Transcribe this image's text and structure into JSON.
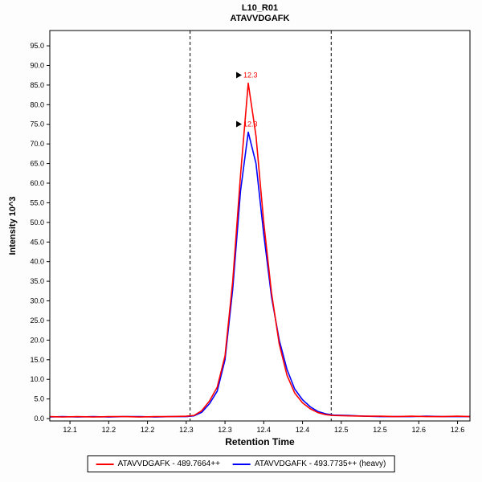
{
  "title": {
    "line1": "L10_R01",
    "line2": "ATAVVDGAFK"
  },
  "axes": {
    "y_label": "Intensity 10^3",
    "x_label": "Retention Time"
  },
  "legend": [
    {
      "label": "ATAVVDGAFK - 489.7664++",
      "color": "#ff0000"
    },
    {
      "label": "ATAVVDGAFK - 493.7735++ (heavy)",
      "color": "#0000ff"
    }
  ],
  "chart_data": {
    "type": "line",
    "title": "L10_R01",
    "subtitle": "ATAVVDGAFK",
    "xlabel": "Retention Time",
    "ylabel": "Intensity 10^3",
    "xlim": [
      12.074,
      12.616
    ],
    "ylim": [
      -0.6,
      98.9
    ],
    "grid": false,
    "legend_position": "bottom",
    "x_ticks": [
      {
        "v": 12.1,
        "label": "12.1"
      },
      {
        "v": 12.15,
        "label": "12.2"
      },
      {
        "v": 12.2,
        "label": "12.2"
      },
      {
        "v": 12.25,
        "label": "12.3"
      },
      {
        "v": 12.3,
        "label": "12.3"
      },
      {
        "v": 12.35,
        "label": "12.4"
      },
      {
        "v": 12.4,
        "label": "12.4"
      },
      {
        "v": 12.45,
        "label": "12.5"
      },
      {
        "v": 12.5,
        "label": "12.5"
      },
      {
        "v": 12.55,
        "label": "12.6"
      },
      {
        "v": 12.6,
        "label": "12.6"
      }
    ],
    "y_ticks": [
      {
        "v": 0,
        "label": "0.0"
      },
      {
        "v": 5,
        "label": "5.0"
      },
      {
        "v": 10,
        "label": "10.0"
      },
      {
        "v": 15,
        "label": "15.0"
      },
      {
        "v": 20,
        "label": "20.0"
      },
      {
        "v": 25,
        "label": "25.0"
      },
      {
        "v": 30,
        "label": "30.0"
      },
      {
        "v": 35,
        "label": "35.0"
      },
      {
        "v": 40,
        "label": "40.0"
      },
      {
        "v": 45,
        "label": "45.0"
      },
      {
        "v": 50,
        "label": "50.0"
      },
      {
        "v": 55,
        "label": "55.0"
      },
      {
        "v": 60,
        "label": "60.0"
      },
      {
        "v": 65,
        "label": "65.0"
      },
      {
        "v": 70,
        "label": "70.0"
      },
      {
        "v": 75,
        "label": "75.0"
      },
      {
        "v": 80,
        "label": "80.0"
      },
      {
        "v": 85,
        "label": "85.0"
      },
      {
        "v": 90,
        "label": "90.0"
      },
      {
        "v": 95,
        "label": "95.0"
      }
    ],
    "peak_boundaries": [
      12.255,
      12.437
    ],
    "annotations": [
      {
        "text": "12.3",
        "x": 12.33,
        "y": 85.5,
        "color": "#ff0000"
      },
      {
        "text": "12.3",
        "x": 12.33,
        "y": 73.0,
        "color": "#ff0000"
      }
    ],
    "series": [
      {
        "name": "ATAVVDGAFK - 489.7664++",
        "color": "#ff0000",
        "points": [
          [
            12.074,
            0.5
          ],
          [
            12.09,
            0.4
          ],
          [
            12.11,
            0.5
          ],
          [
            12.13,
            0.4
          ],
          [
            12.15,
            0.5
          ],
          [
            12.17,
            0.5
          ],
          [
            12.19,
            0.4
          ],
          [
            12.21,
            0.5
          ],
          [
            12.23,
            0.5
          ],
          [
            12.25,
            0.6
          ],
          [
            12.26,
            0.8
          ],
          [
            12.27,
            2.0
          ],
          [
            12.28,
            4.5
          ],
          [
            12.29,
            8.0
          ],
          [
            12.3,
            16.0
          ],
          [
            12.31,
            35.0
          ],
          [
            12.32,
            62.0
          ],
          [
            12.33,
            85.5
          ],
          [
            12.34,
            72.0
          ],
          [
            12.35,
            50.0
          ],
          [
            12.36,
            32.0
          ],
          [
            12.37,
            19.0
          ],
          [
            12.38,
            11.0
          ],
          [
            12.39,
            6.5
          ],
          [
            12.4,
            4.0
          ],
          [
            12.41,
            2.5
          ],
          [
            12.42,
            1.5
          ],
          [
            12.43,
            1.0
          ],
          [
            12.44,
            0.8
          ],
          [
            12.46,
            0.7
          ],
          [
            12.48,
            0.6
          ],
          [
            12.5,
            0.6
          ],
          [
            12.52,
            0.5
          ],
          [
            12.54,
            0.6
          ],
          [
            12.56,
            0.5
          ],
          [
            12.58,
            0.5
          ],
          [
            12.6,
            0.6
          ],
          [
            12.616,
            0.5
          ]
        ]
      },
      {
        "name": "ATAVVDGAFK - 493.7735++ (heavy)",
        "color": "#0000ff",
        "points": [
          [
            12.074,
            0.4
          ],
          [
            12.09,
            0.5
          ],
          [
            12.11,
            0.4
          ],
          [
            12.13,
            0.5
          ],
          [
            12.15,
            0.4
          ],
          [
            12.17,
            0.5
          ],
          [
            12.19,
            0.5
          ],
          [
            12.21,
            0.4
          ],
          [
            12.23,
            0.5
          ],
          [
            12.25,
            0.5
          ],
          [
            12.26,
            0.7
          ],
          [
            12.27,
            1.6
          ],
          [
            12.28,
            3.8
          ],
          [
            12.29,
            7.0
          ],
          [
            12.3,
            15.0
          ],
          [
            12.31,
            33.0
          ],
          [
            12.32,
            58.0
          ],
          [
            12.33,
            73.0
          ],
          [
            12.34,
            65.0
          ],
          [
            12.35,
            47.0
          ],
          [
            12.36,
            31.0
          ],
          [
            12.37,
            20.0
          ],
          [
            12.38,
            12.5
          ],
          [
            12.39,
            7.5
          ],
          [
            12.4,
            4.8
          ],
          [
            12.41,
            3.0
          ],
          [
            12.42,
            1.8
          ],
          [
            12.43,
            1.2
          ],
          [
            12.44,
            0.9
          ],
          [
            12.46,
            0.8
          ],
          [
            12.48,
            0.6
          ],
          [
            12.5,
            0.5
          ],
          [
            12.52,
            0.5
          ],
          [
            12.54,
            0.5
          ],
          [
            12.56,
            0.6
          ],
          [
            12.58,
            0.5
          ],
          [
            12.6,
            0.5
          ],
          [
            12.616,
            0.5
          ]
        ]
      }
    ]
  }
}
